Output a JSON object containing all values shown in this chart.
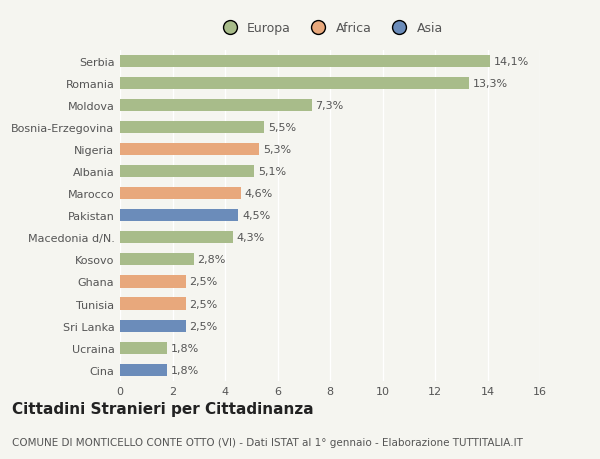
{
  "categories": [
    "Cina",
    "Ucraina",
    "Sri Lanka",
    "Tunisia",
    "Ghana",
    "Kosovo",
    "Macedonia d/N.",
    "Pakistan",
    "Marocco",
    "Albania",
    "Nigeria",
    "Bosnia-Erzegovina",
    "Moldova",
    "Romania",
    "Serbia"
  ],
  "values": [
    1.8,
    1.8,
    2.5,
    2.5,
    2.5,
    2.8,
    4.3,
    4.5,
    4.6,
    5.1,
    5.3,
    5.5,
    7.3,
    13.3,
    14.1
  ],
  "labels": [
    "1,8%",
    "1,8%",
    "2,5%",
    "2,5%",
    "2,5%",
    "2,8%",
    "4,3%",
    "4,5%",
    "4,6%",
    "5,1%",
    "5,3%",
    "5,5%",
    "7,3%",
    "13,3%",
    "14,1%"
  ],
  "colors": [
    "#6b8cba",
    "#a8bc8a",
    "#6b8cba",
    "#e8a87c",
    "#e8a87c",
    "#a8bc8a",
    "#a8bc8a",
    "#6b8cba",
    "#e8a87c",
    "#a8bc8a",
    "#e8a87c",
    "#a8bc8a",
    "#a8bc8a",
    "#a8bc8a",
    "#a8bc8a"
  ],
  "legend": [
    {
      "label": "Europa",
      "color": "#a8bc8a"
    },
    {
      "label": "Africa",
      "color": "#e8a87c"
    },
    {
      "label": "Asia",
      "color": "#6b8cba"
    }
  ],
  "xlim": [
    0,
    16
  ],
  "xticks": [
    0,
    2,
    4,
    6,
    8,
    10,
    12,
    14,
    16
  ],
  "title": "Cittadini Stranieri per Cittadinanza",
  "subtitle": "COMUNE DI MONTICELLO CONTE OTTO (VI) - Dati ISTAT al 1° gennaio - Elaborazione TUTTITALIA.IT",
  "background_color": "#f5f5f0",
  "bar_height": 0.55,
  "grid_color": "#ffffff",
  "label_fontsize": 8,
  "tick_fontsize": 8,
  "title_fontsize": 11,
  "subtitle_fontsize": 7.5,
  "text_color": "#555555",
  "title_color": "#222222"
}
